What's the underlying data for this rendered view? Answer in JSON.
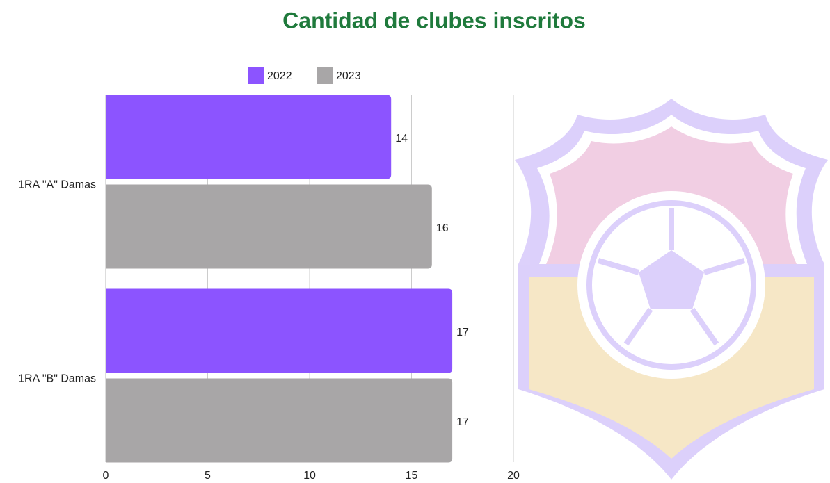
{
  "chart_data": {
    "type": "bar",
    "orientation": "horizontal",
    "title": "Cantidad de clubes inscritos",
    "categories": [
      "1RA \"A\" Damas",
      "1RA \"B\" Damas"
    ],
    "series": [
      {
        "name": "2022",
        "color": "#8c54ff",
        "values": [
          14,
          17
        ]
      },
      {
        "name": "2023",
        "color": "#a8a6a7",
        "values": [
          16,
          17
        ]
      }
    ],
    "xlim": [
      0,
      20
    ],
    "xticks": [
      0,
      5,
      10,
      15,
      20
    ],
    "grid": true,
    "legend": "top"
  }
}
